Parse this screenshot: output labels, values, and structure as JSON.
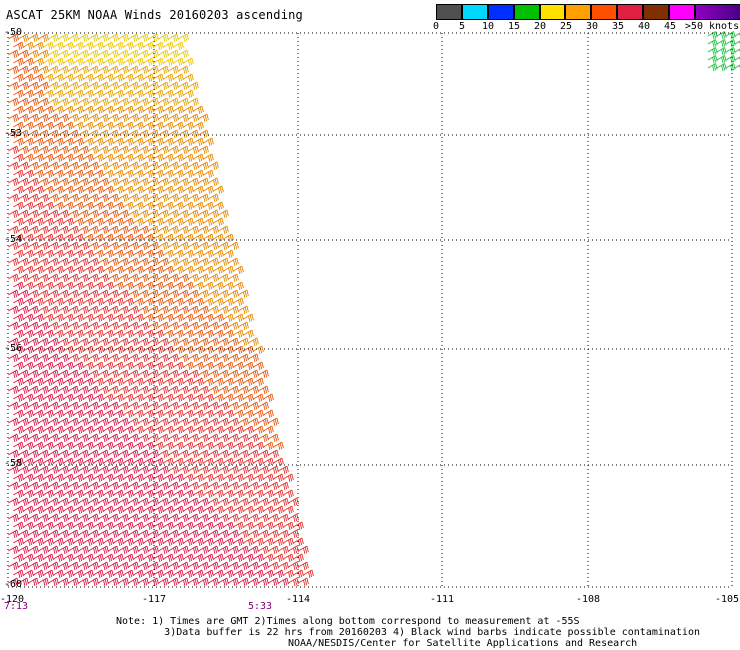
{
  "title": "ASCAT 25KM NOAA Winds 20160203 ascending",
  "legend": {
    "colors": [
      "#505050",
      "#00d8ff",
      "#0030ff",
      "#00c000",
      "#ffe000",
      "#ffa000",
      "#ff5000",
      "#e02040",
      "#803000",
      "#ff00ff",
      "#9000c0",
      "#400080"
    ],
    "labels": [
      "0",
      "5",
      "10",
      "15",
      "20",
      "25",
      "30",
      "35",
      "40",
      "45",
      ">50 knots"
    ]
  },
  "axes": {
    "lat_labels": [
      "-50",
      "-53",
      "-54",
      "-56",
      "-58",
      "-60"
    ],
    "lon_labels": [
      "-120",
      "-117",
      "-114",
      "-111",
      "-108",
      "-105"
    ],
    "times": [
      "7:13",
      "5:33"
    ]
  },
  "map_data": {
    "lon_range": [
      -120,
      -105
    ],
    "lat_range": [
      -60,
      -50
    ],
    "swath_west_edge_lon": -120,
    "swath_east_edge_top_lon": -116.3,
    "swath_east_edge_bottom_lon": -113.6,
    "dominant_speed_knots_north": "20-30",
    "dominant_speed_knots_south": "35-40",
    "secondary_barbs_northeast_corner": "15-20"
  },
  "notes": {
    "line1": "Note: 1) Times are GMT 2)Times along bottom correspond to measurement at -55S",
    "line2": "3)Data buffer is 22 hrs from 20160203 4) Black wind barbs indicate possible contamination",
    "credit": "NOAA/NESDIS/Center for Satellite Applications and Research"
  }
}
